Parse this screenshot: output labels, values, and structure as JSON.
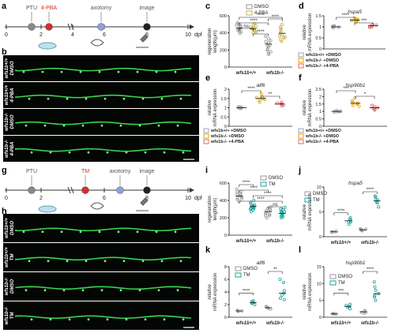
{
  "panel_letters": {
    "a": "a",
    "b": "b",
    "c": "c",
    "d": "d",
    "e": "e",
    "f": "f",
    "g": "g",
    "h": "h",
    "i": "i",
    "j": "j",
    "k": "k",
    "l": "l"
  },
  "timeline_a": {
    "ticks": [
      "0",
      "2",
      "4",
      "6",
      "8",
      "10"
    ],
    "unit": "dpf",
    "events": [
      {
        "label": "PTU",
        "color": "#888888",
        "label_color": "#555555"
      },
      {
        "label": "4-PBA",
        "color": "#d92c2c",
        "label_color": "#d92c2c"
      },
      {
        "label": "axotomy",
        "color": "#8da0d8",
        "label_color": "#555555"
      },
      {
        "label": "image",
        "color": "#222222",
        "label_color": "#555555"
      }
    ]
  },
  "timeline_g": {
    "ticks": [
      "0",
      "2",
      "6",
      "8",
      "10"
    ],
    "unit": "dpf",
    "events": [
      {
        "label": "PTU",
        "color": "#888888",
        "label_color": "#555555"
      },
      {
        "label": "TM",
        "color": "#d92c2c",
        "label_color": "#d92c2c"
      },
      {
        "label": "axotomy",
        "color": "#8da0d8",
        "label_color": "#555555"
      },
      {
        "label": "image",
        "color": "#222222",
        "label_color": "#555555"
      }
    ]
  },
  "images_b": [
    {
      "label": [
        "wfs1b+/+",
        "DMSO"
      ]
    },
    {
      "label": [
        "wfs1b+/+",
        "4-PBA"
      ]
    },
    {
      "label": [
        "wfs1b-/-",
        "DMSO"
      ]
    },
    {
      "label": [
        "wfs1b-/-",
        "4-PBA"
      ]
    }
  ],
  "images_h": [
    {
      "label": [
        "wfs1b+/+",
        "DMSO"
      ]
    },
    {
      "label": [
        "wfs1b+/+",
        "TM"
      ]
    },
    {
      "label": [
        "wfs1b-/-",
        "DMSO"
      ]
    },
    {
      "label": [
        "wfs1b-/-",
        "TM"
      ]
    }
  ],
  "colors": {
    "dmso": "#9a9a9a",
    "pba": "#c9b04a",
    "tm": "#1aa39a",
    "wt": "#9aa0ac",
    "ko_dmso": "#e3a000",
    "ko_pba": "#e06666"
  },
  "chart_data": [
    {
      "panel": "c",
      "type": "scatter",
      "ylabel": "regeneration length(μm)",
      "ylim": [
        0,
        600
      ],
      "yticks": [
        0,
        200,
        400,
        600
      ],
      "categories": [
        "wfs1b+/+",
        "wfs1b-/-"
      ],
      "legend": [
        "DMSO",
        "4-PBA"
      ],
      "series": [
        {
          "name": "DMSO",
          "means": [
            455,
            270
          ],
          "points": [
            [
              520,
              480,
              460,
              440,
              430,
              410,
              470,
              500,
              450,
              420,
              490,
              395,
              445,
              505
            ],
            [
              360,
              300,
              250,
              200,
              180,
              160,
              280,
              330,
              240,
              150,
              210,
              310,
              260
            ]
          ]
        },
        {
          "name": "4-PBA",
          "means": [
            450,
            395
          ],
          "points": [
            [
              510,
              470,
              450,
              430,
              420,
              480,
              440,
              460,
              410,
              490,
              400,
              455
            ],
            [
              500,
              430,
              380,
              350,
              320,
              450,
              410,
              360,
              300,
              470,
              390,
              340
            ]
          ]
        }
      ],
      "significance": [
        "****",
        "****",
        "ns",
        "****",
        "****"
      ]
    },
    {
      "panel": "d",
      "type": "scatter",
      "title": "hspa5",
      "ylabel": "relative mRNA expression",
      "ylim": [
        0,
        1.5
      ],
      "yticks": [
        0,
        0.5,
        1,
        1.5
      ],
      "groups": [
        "wfs1b+/+ +DMSO",
        "wfs1b-/- +DMSO",
        "wfs1b-/- +4-PBA"
      ],
      "means": [
        1.0,
        1.3,
        1.05
      ],
      "points": [
        [
          1.0,
          0.95,
          1.05,
          1.02,
          0.98,
          1.0,
          1.04
        ],
        [
          1.25,
          1.3,
          1.35,
          1.28,
          1.4,
          1.22,
          1.32
        ],
        [
          1.0,
          1.08,
          1.05,
          1.1,
          0.98,
          1.02
        ]
      ],
      "significance": [
        "****",
        "***"
      ]
    },
    {
      "panel": "e",
      "type": "scatter",
      "title": "atf6",
      "ylabel": "relative mRNA expression",
      "ylim": [
        0,
        2.0
      ],
      "yticks": [
        0,
        0.5,
        1.0,
        1.5,
        2.0
      ],
      "groups": [
        "wfs1b+/+ +DMSO",
        "wfs1b-/- +DMSO",
        "wfs1b-/- +4-PBA"
      ],
      "means": [
        1.0,
        1.5,
        1.2
      ],
      "points": [
        [
          1.0,
          0.95,
          1.02,
          1.05,
          0.98,
          1.0,
          1.03
        ],
        [
          1.3,
          1.45,
          1.6,
          1.5,
          1.75,
          1.4,
          1.55
        ],
        [
          1.1,
          1.2,
          1.25,
          1.15,
          1.3,
          1.2
        ]
      ],
      "significance": [
        "****",
        "**"
      ]
    },
    {
      "panel": "f",
      "type": "scatter",
      "title": "hsp90b1",
      "ylabel": "relative mRNA expression",
      "ylim": [
        0,
        2.5
      ],
      "yticks": [
        0,
        0.5,
        1.0,
        1.5,
        2.0,
        2.5
      ],
      "groups": [
        "wfs1b+/+ +DMSO",
        "wfs1b-/- +DMSO",
        "wfs1b-/- +4-PBA"
      ],
      "means": [
        1.0,
        1.55,
        1.25
      ],
      "points": [
        [
          1.0,
          0.98,
          1.02,
          1.05,
          0.96,
          1.0,
          1.03
        ],
        [
          1.4,
          1.6,
          1.9,
          1.5,
          1.7,
          1.35,
          1.55
        ],
        [
          1.1,
          1.3,
          1.25,
          1.2,
          1.4,
          1.15
        ]
      ],
      "significance": [
        "***",
        "*"
      ]
    },
    {
      "panel": "i",
      "type": "scatter",
      "ylabel": "regeneration length(μm)",
      "ylim": [
        0,
        600
      ],
      "yticks": [
        0,
        200,
        400,
        600
      ],
      "categories": [
        "wfs1b+/+",
        "wfs1b-/-"
      ],
      "legend": [
        "DMSO",
        "TM"
      ],
      "series": [
        {
          "name": "DMSO",
          "means": [
            450,
            270
          ],
          "points": [
            [
              530,
              500,
              470,
              450,
              430,
              410,
              480,
              440,
              460,
              420,
              500,
              390
            ],
            [
              330,
              290,
              250,
              220,
              300,
              260,
              200,
              280,
              240,
              310,
              230
            ]
          ]
        },
        {
          "name": "TM",
          "means": [
            330,
            250
          ],
          "points": [
            [
              400,
              360,
              330,
              310,
              290,
              350,
              320,
              380,
              300,
              340,
              270,
              330,
              310
            ],
            [
              320,
              280,
              240,
              210,
              260,
              230,
              290,
              250,
              220,
              270,
              200,
              300
            ]
          ]
        }
      ],
      "significance": [
        "****",
        "****",
        "****",
        "****",
        "ns"
      ]
    },
    {
      "panel": "j",
      "type": "scatter",
      "title": "hspa5",
      "ylabel": "relative mRNA expression",
      "ylim": [
        0,
        10
      ],
      "yticks": [
        0,
        5,
        10
      ],
      "categories": [
        "wfs1b+/+",
        "wfs1b-/-"
      ],
      "legend": [
        "DMSO",
        "TM"
      ],
      "series": [
        {
          "name": "DMSO",
          "means": [
            1.0,
            1.4
          ],
          "points": [
            [
              0.9,
              1.0,
              1.1,
              1.0
            ],
            [
              1.2,
              1.5,
              1.4,
              1.3,
              1.6,
              1.4
            ]
          ]
        },
        {
          "name": "TM",
          "means": [
            3.2,
            7.2
          ],
          "points": [
            [
              2.5,
              3.0,
              3.5,
              3.8,
              3.0,
              3.3
            ],
            [
              6.0,
              7.0,
              7.5,
              8.0,
              6.8,
              7.4,
              8.2
            ]
          ]
        }
      ],
      "significance": [
        "****",
        "****"
      ]
    },
    {
      "panel": "k",
      "type": "scatter",
      "title": "atf6",
      "ylabel": "relative mRNA expression",
      "ylim": [
        0,
        8
      ],
      "yticks": [
        0,
        2,
        4,
        6,
        8
      ],
      "categories": [
        "wfs1b+/+",
        "wfs1b-/-"
      ],
      "legend": [
        "DMSO",
        "TM"
      ],
      "series": [
        {
          "name": "DMSO",
          "means": [
            1.0,
            1.5
          ],
          "points": [
            [
              0.9,
              1.0,
              1.1,
              1.0
            ],
            [
              1.3,
              1.6,
              1.5,
              1.4,
              1.7
            ]
          ]
        },
        {
          "name": "TM",
          "means": [
            2.3,
            3.8
          ],
          "points": [
            [
              2.0,
              2.3,
              2.5,
              2.2,
              2.6
            ],
            [
              2.8,
              3.5,
              4.2,
              5.5,
              3.0,
              6.0,
              3.8
            ]
          ]
        }
      ],
      "significance": [
        "****",
        "**"
      ]
    },
    {
      "panel": "l",
      "type": "scatter",
      "title": "hsp90b1",
      "ylabel": "relative mRNA expression",
      "ylim": [
        0,
        15
      ],
      "yticks": [
        0,
        5,
        10,
        15
      ],
      "categories": [
        "wfs1b+/+",
        "wfs1b-/-"
      ],
      "legend": [
        "DMSO",
        "TM"
      ],
      "series": [
        {
          "name": "DMSO",
          "means": [
            1.0,
            1.6
          ],
          "points": [
            [
              0.9,
              1.0,
              1.1,
              1.0
            ],
            [
              1.2,
              1.8,
              1.5,
              2.0,
              1.4
            ]
          ]
        },
        {
          "name": "TM",
          "means": [
            3.2,
            7.0
          ],
          "points": [
            [
              2.5,
              3.0,
              3.8,
              3.2,
              3.5
            ],
            [
              5.0,
              6.5,
              8.0,
              10.5,
              7.0,
              6.0,
              9.0
            ]
          ]
        }
      ],
      "significance": [
        "***",
        "****"
      ]
    }
  ]
}
